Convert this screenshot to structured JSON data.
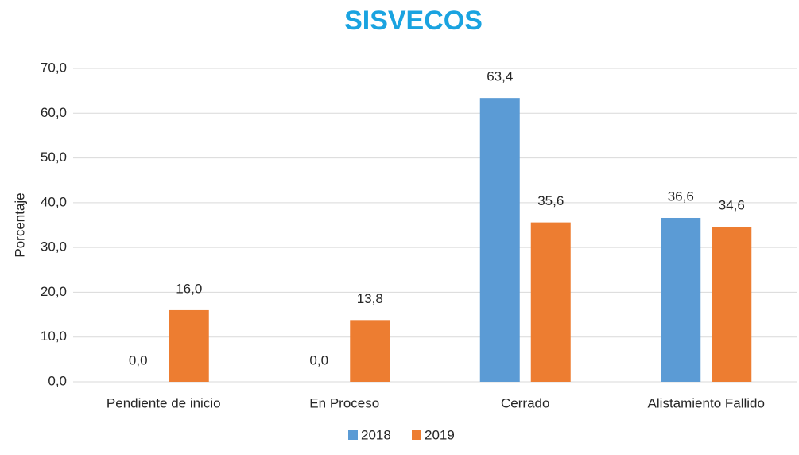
{
  "chart_data": {
    "type": "bar",
    "title": "SISVECOS",
    "y_label": "Porcentaje",
    "categories": [
      "Pendiente de inicio",
      "En Proceso",
      "Cerrado",
      "Alistamiento Fallido"
    ],
    "series": [
      {
        "name": "2018",
        "color": "#5b9bd5",
        "values": [
          0,
          0,
          63.4,
          36.6
        ],
        "value_labels": [
          "0,0",
          "0,0",
          "63,4",
          "36,6"
        ]
      },
      {
        "name": "2019",
        "color": "#ed7d31",
        "values": [
          16,
          13.8,
          35.6,
          34.6
        ],
        "value_labels": [
          "16,0",
          "13,8",
          "35,6",
          "34,6"
        ]
      }
    ],
    "ylim": [
      0,
      70
    ],
    "yticks": [
      {
        "value": 0,
        "label": "0,0"
      },
      {
        "value": 10,
        "label": "10,0"
      },
      {
        "value": 20,
        "label": "20,0"
      },
      {
        "value": 30,
        "label": "30,0"
      },
      {
        "value": 40,
        "label": "40,0"
      },
      {
        "value": 50,
        "label": "50,0"
      },
      {
        "value": 60,
        "label": "60,0"
      },
      {
        "value": 70,
        "label": "70,0"
      }
    ],
    "grid": true,
    "legend": "bottom"
  }
}
